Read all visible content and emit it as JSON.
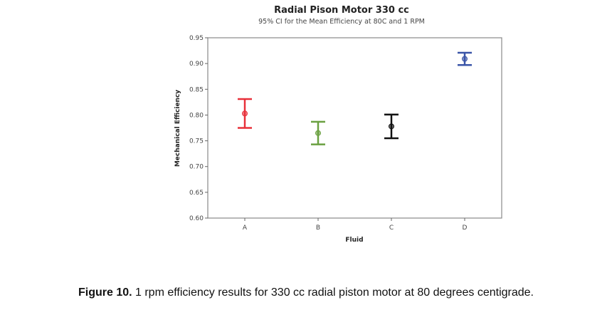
{
  "chart_data": {
    "type": "interval",
    "title": "Radial Pison Motor 330 cc",
    "subtitle": "95% CI for the Mean Efficiency at 80C and 1 RPM",
    "xlabel": "Fluid",
    "ylabel": "Mechanical Efficiency",
    "ylim": [
      0.6,
      0.95
    ],
    "yticks": [
      "0.60",
      "0.65",
      "0.70",
      "0.75",
      "0.80",
      "0.85",
      "0.90",
      "0.95"
    ],
    "categories": [
      "A",
      "B",
      "C",
      "D"
    ],
    "series": [
      {
        "name": "A",
        "mean": 0.803,
        "lower": 0.775,
        "upper": 0.831,
        "color": "#e8303a"
      },
      {
        "name": "B",
        "mean": 0.765,
        "lower": 0.743,
        "upper": 0.787,
        "color": "#6aa040"
      },
      {
        "name": "C",
        "mean": 0.778,
        "lower": 0.755,
        "upper": 0.801,
        "color": "#111111"
      },
      {
        "name": "D",
        "mean": 0.909,
        "lower": 0.897,
        "upper": 0.921,
        "color": "#3a55a8"
      }
    ],
    "grid": false
  },
  "caption": {
    "label": "Figure 10.",
    "text": " 1 rpm efficiency results for 330 cc radial piston motor at 80 degrees centigrade."
  }
}
